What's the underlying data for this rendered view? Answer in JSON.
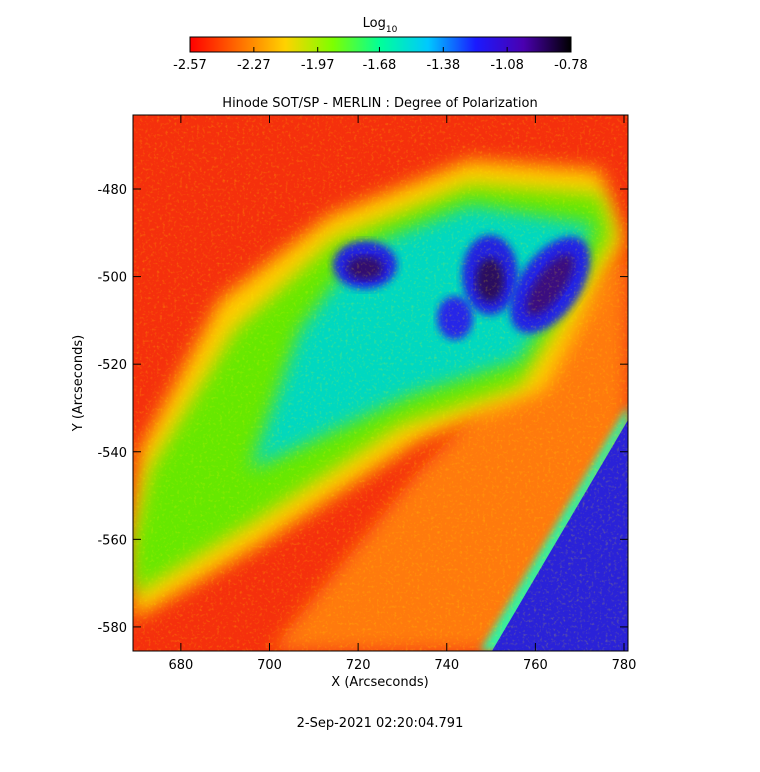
{
  "chart_data": {
    "type": "image",
    "title": "Hinode SOT/SP - MERLIN : Degree of Polarization",
    "x_label": "X (Arcseconds)",
    "y_label": "Y (Arcseconds)",
    "footer": "2-Sep-2021 02:20:04.791",
    "colorbar_label": "Log",
    "colorbar_label_subscript": "10",
    "colormap": [
      "#ff0000",
      "#ff6a00",
      "#ffd200",
      "#7dff00",
      "#00ff9a",
      "#00c8ff",
      "#1a1aff",
      "#4a00b0",
      "#000000"
    ],
    "clim": [
      -2.57,
      -0.78
    ],
    "cticks": [
      -2.57,
      -2.27,
      -1.97,
      -1.68,
      -1.38,
      -1.08,
      -0.78
    ],
    "xlim": [
      669.2,
      780.9
    ],
    "xticks": [
      680,
      700,
      720,
      740,
      760,
      780
    ],
    "ylim": [
      -585.5,
      -463.1
    ],
    "yticks": [
      -480,
      -500,
      -520,
      -540,
      -560,
      -580
    ]
  }
}
